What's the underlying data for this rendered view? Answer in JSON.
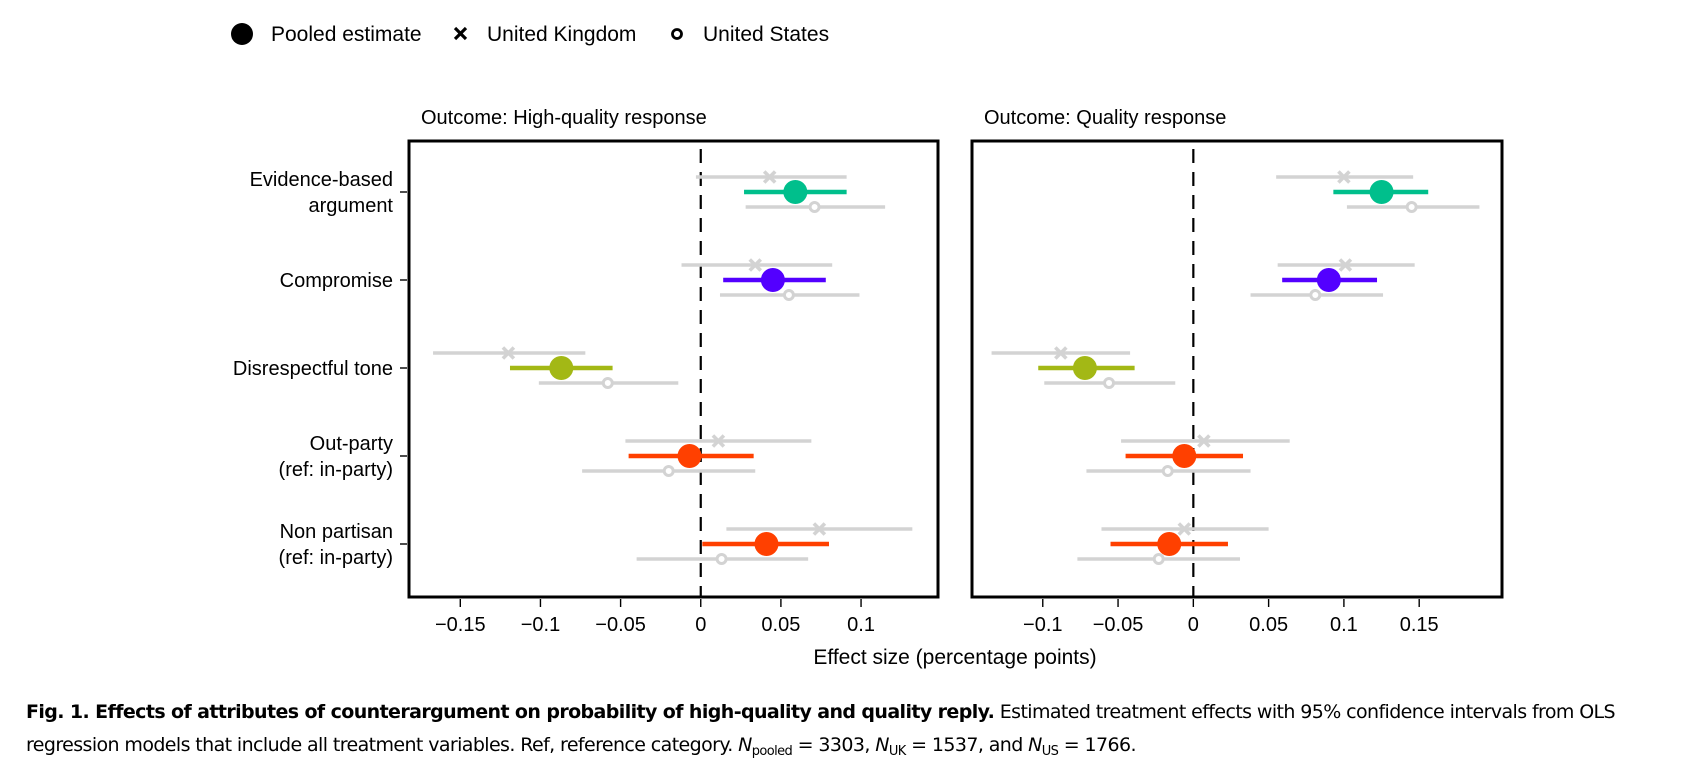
{
  "legend": {
    "items": [
      {
        "label": "Pooled estimate",
        "marker": "filled-circle"
      },
      {
        "label": "United Kingdom",
        "marker": "x-cross"
      },
      {
        "label": "United States",
        "marker": "open-circle"
      }
    ]
  },
  "colors": {
    "evidence": "#00BF8C",
    "compromise": "#5300FF",
    "disrespect": "#A3B815",
    "partisan": "#FF4000",
    "country": "#D3D3D3",
    "frame": "#000000"
  },
  "caption": {
    "bold": "Fig. 1. Effects of attributes of counterargument on probability of high-quality and quality reply.",
    "text": " Estimated treatment effects with 95% confidence intervals from OLS regression models that include all treatment variables. Ref, reference category. ",
    "n_pooled_label": "N",
    "n_pooled_sub": "pooled",
    "n_pooled_value": " = 3303, ",
    "n_uk_label": "N",
    "n_uk_sub": "UK",
    "n_uk_value": " = 1537, and ",
    "n_us_label": "N",
    "n_us_sub": "US",
    "n_us_value": " = 1766."
  },
  "chart_data": {
    "type": "forest",
    "xlabel": "Effect size (percentage points)",
    "categories": [
      {
        "label": [
          "Evidence-based",
          "argument"
        ],
        "color_key": "evidence"
      },
      {
        "label": [
          "Compromise"
        ],
        "color_key": "compromise"
      },
      {
        "label": [
          "Disrespectful tone"
        ],
        "color_key": "disrespect"
      },
      {
        "label": [
          "Out-party",
          "(ref: in-party)"
        ],
        "color_key": "partisan"
      },
      {
        "label": [
          "Non partisan",
          "(ref: in-party)"
        ],
        "color_key": "partisan"
      }
    ],
    "panels": [
      {
        "title": "Outcome: High-quality response",
        "xlim": [
          -0.182,
          0.148
        ],
        "ticks": [
          -0.15,
          -0.1,
          -0.05,
          0,
          0.05,
          0.1
        ],
        "tick_labels": [
          "−0.15",
          "−0.1",
          "−0.05",
          "0",
          "0.05",
          "0.1"
        ],
        "reference_line": 0,
        "rows": [
          {
            "pooled": {
              "est": 0.059,
              "lo": 0.027,
              "hi": 0.091
            },
            "uk": {
              "est": 0.043,
              "lo": -0.003,
              "hi": 0.091
            },
            "us": {
              "est": 0.071,
              "lo": 0.028,
              "hi": 0.115
            }
          },
          {
            "pooled": {
              "est": 0.045,
              "lo": 0.014,
              "hi": 0.078
            },
            "uk": {
              "est": 0.034,
              "lo": -0.012,
              "hi": 0.082
            },
            "us": {
              "est": 0.055,
              "lo": 0.012,
              "hi": 0.099
            }
          },
          {
            "pooled": {
              "est": -0.087,
              "lo": -0.119,
              "hi": -0.055
            },
            "uk": {
              "est": -0.12,
              "lo": -0.167,
              "hi": -0.072
            },
            "us": {
              "est": -0.058,
              "lo": -0.101,
              "hi": -0.014
            }
          },
          {
            "pooled": {
              "est": -0.007,
              "lo": -0.045,
              "hi": 0.033
            },
            "uk": {
              "est": 0.011,
              "lo": -0.047,
              "hi": 0.069
            },
            "us": {
              "est": -0.02,
              "lo": -0.074,
              "hi": 0.034
            }
          },
          {
            "pooled": {
              "est": 0.041,
              "lo": 0.001,
              "hi": 0.08
            },
            "uk": {
              "est": 0.074,
              "lo": 0.016,
              "hi": 0.132
            },
            "us": {
              "est": 0.013,
              "lo": -0.04,
              "hi": 0.067
            }
          }
        ]
      },
      {
        "title": "Outcome: Quality response",
        "xlim": [
          -0.147,
          0.205
        ],
        "ticks": [
          -0.1,
          -0.05,
          0,
          0.05,
          0.1,
          0.15
        ],
        "tick_labels": [
          "−0.1",
          "−0.05",
          "0",
          "0.05",
          "0.1",
          "0.15"
        ],
        "reference_line": 0,
        "rows": [
          {
            "pooled": {
              "est": 0.125,
              "lo": 0.093,
              "hi": 0.156
            },
            "uk": {
              "est": 0.1,
              "lo": 0.055,
              "hi": 0.146
            },
            "us": {
              "est": 0.145,
              "lo": 0.102,
              "hi": 0.19
            }
          },
          {
            "pooled": {
              "est": 0.09,
              "lo": 0.059,
              "hi": 0.122
            },
            "uk": {
              "est": 0.101,
              "lo": 0.056,
              "hi": 0.147
            },
            "us": {
              "est": 0.081,
              "lo": 0.038,
              "hi": 0.126
            }
          },
          {
            "pooled": {
              "est": -0.072,
              "lo": -0.103,
              "hi": -0.039
            },
            "uk": {
              "est": -0.088,
              "lo": -0.134,
              "hi": -0.042
            },
            "us": {
              "est": -0.056,
              "lo": -0.099,
              "hi": -0.012
            }
          },
          {
            "pooled": {
              "est": -0.006,
              "lo": -0.045,
              "hi": 0.033
            },
            "uk": {
              "est": 0.007,
              "lo": -0.048,
              "hi": 0.064
            },
            "us": {
              "est": -0.017,
              "lo": -0.071,
              "hi": 0.038
            }
          },
          {
            "pooled": {
              "est": -0.016,
              "lo": -0.055,
              "hi": 0.023
            },
            "uk": {
              "est": -0.006,
              "lo": -0.061,
              "hi": 0.05
            },
            "us": {
              "est": -0.023,
              "lo": -0.077,
              "hi": 0.031
            }
          }
        ]
      }
    ]
  }
}
